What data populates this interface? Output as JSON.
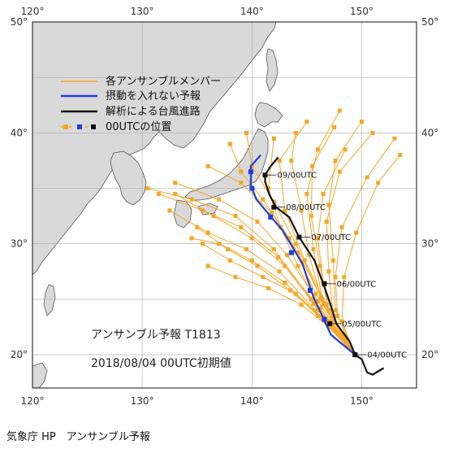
{
  "chart_data": {
    "type": "map",
    "title": "",
    "xlim": [
      120,
      155
    ],
    "ylim": [
      17,
      50
    ],
    "x_ticks": [
      120,
      130,
      140,
      150
    ],
    "y_ticks": [
      20,
      30,
      40,
      50
    ],
    "x_tick_labels": [
      "120°",
      "130°",
      "140°",
      "150°"
    ],
    "y_tick_labels": [
      "20°",
      "30°",
      "40°",
      "50°"
    ],
    "grid": true,
    "legend_position": "top-left",
    "legend": [
      {
        "label": "各アンサンブルメンバー",
        "color": "#f5a623",
        "kind": "line"
      },
      {
        "label": "摂動を入れない予報",
        "color": "#1f3de0",
        "kind": "line"
      },
      {
        "label": "解析による台風進路",
        "color": "#111111",
        "kind": "line"
      },
      {
        "label": "00UTCの位置",
        "color": "#f5a623",
        "kind": "markers",
        "marker_colors": [
          "#f5a623",
          "#1f3de0",
          "#111111"
        ]
      }
    ],
    "colors": {
      "land": "#d9d9d9",
      "sea": "#ffffff",
      "grid": "#aaaaaa",
      "coast": "#555555"
    },
    "analysis_track": [
      [
        152,
        18.8
      ],
      [
        151,
        18.2
      ],
      [
        150.5,
        18.4
      ],
      [
        150,
        19.6
      ],
      [
        149.4,
        20.0
      ],
      [
        148.9,
        21.2
      ],
      [
        147.7,
        22.8
      ],
      [
        147.1,
        24.7
      ],
      [
        146.5,
        26.4
      ],
      [
        145.7,
        28.5
      ],
      [
        144.3,
        30.6
      ],
      [
        143.4,
        32.4
      ],
      [
        142.2,
        33.3
      ],
      [
        141.6,
        34.4
      ],
      [
        141.2,
        35.6
      ],
      [
        141.2,
        36.2
      ],
      [
        141.7,
        37.0
      ],
      [
        142.4,
        37.8
      ]
    ],
    "analysis_points": [
      [
        149.4,
        20.0
      ],
      [
        147.1,
        22.8
      ],
      [
        146.6,
        26.4
      ],
      [
        144.3,
        30.6
      ],
      [
        142.0,
        33.3
      ],
      [
        141.2,
        36.2
      ]
    ],
    "analysis_labels": [
      {
        "text": "04/00UTC",
        "lon": 149.4,
        "lat": 20.0
      },
      {
        "text": "05/00UTC",
        "lon": 147.1,
        "lat": 22.8
      },
      {
        "text": "06/00UTC",
        "lon": 146.6,
        "lat": 26.4
      },
      {
        "text": "07/00UTC",
        "lon": 144.3,
        "lat": 30.6
      },
      {
        "text": "08/00UTC",
        "lon": 142.0,
        "lat": 33.3
      },
      {
        "text": "09/00UTC",
        "lon": 141.2,
        "lat": 36.2
      }
    ],
    "control_forecast": [
      [
        149.4,
        20.0
      ],
      [
        147.2,
        21.8
      ],
      [
        145.6,
        25.2
      ],
      [
        144.6,
        28.2
      ],
      [
        142.8,
        31.2
      ],
      [
        140.4,
        34.0
      ],
      [
        139.9,
        35.3
      ],
      [
        139.9,
        37.0
      ],
      [
        140.8,
        38.0
      ]
    ],
    "control_points": [
      [
        149.4,
        20.0
      ],
      [
        146.6,
        23.2
      ],
      [
        145.3,
        25.8
      ],
      [
        143.6,
        29.2
      ],
      [
        141.7,
        32.4
      ],
      [
        140.0,
        35.0
      ],
      [
        139.9,
        36.5
      ]
    ],
    "ensemble_members": [
      [
        [
          149.4,
          20.0
        ],
        [
          146.5,
          24.5
        ],
        [
          145.2,
          29.0
        ],
        [
          144.5,
          33.0
        ],
        [
          143.6,
          37.5
        ],
        [
          144.0,
          40.0
        ]
      ],
      [
        [
          149.4,
          20.0
        ],
        [
          147.0,
          24.0
        ],
        [
          146.2,
          28.0
        ],
        [
          145.4,
          32.5
        ],
        [
          145.5,
          37.0
        ],
        [
          147.5,
          40.5
        ]
      ],
      [
        [
          149.4,
          20.0
        ],
        [
          147.4,
          23.5
        ],
        [
          147.0,
          27.5
        ],
        [
          146.8,
          32.0
        ],
        [
          148.0,
          36.5
        ],
        [
          151.0,
          40.0
        ]
      ],
      [
        [
          149.4,
          20.0
        ],
        [
          147.8,
          23.5
        ],
        [
          147.6,
          27.0
        ],
        [
          148.2,
          31.5
        ],
        [
          150.5,
          36.0
        ],
        [
          153.0,
          39.5
        ]
      ],
      [
        [
          149.4,
          20.0
        ],
        [
          148.2,
          23.0
        ],
        [
          148.4,
          27.0
        ],
        [
          149.5,
          31.0
        ],
        [
          151.5,
          35.5
        ],
        [
          153.5,
          38.0
        ]
      ],
      [
        [
          149.4,
          20.0
        ],
        [
          146.8,
          24.5
        ],
        [
          144.8,
          28.5
        ],
        [
          143.0,
          33.0
        ],
        [
          142.5,
          37.5
        ],
        [
          145.0,
          41.0
        ]
      ],
      [
        [
          149.4,
          20.0
        ],
        [
          146.2,
          24.0
        ],
        [
          144.2,
          28.0
        ],
        [
          142.6,
          31.5
        ],
        [
          141.5,
          35.0
        ],
        [
          142.0,
          39.5
        ]
      ],
      [
        [
          149.4,
          20.0
        ],
        [
          147.2,
          23.0
        ],
        [
          146.5,
          26.5
        ],
        [
          146.0,
          30.5
        ],
        [
          146.5,
          34.5
        ],
        [
          148.5,
          38.5
        ]
      ],
      [
        [
          149.4,
          20.0
        ],
        [
          146.4,
          25.0
        ],
        [
          145.6,
          29.5
        ],
        [
          145.0,
          34.5
        ],
        [
          146.0,
          38.5
        ],
        [
          148.0,
          42.0
        ]
      ],
      [
        [
          149.4,
          20.0
        ],
        [
          147.6,
          24.0
        ],
        [
          147.4,
          28.5
        ],
        [
          147.0,
          33.5
        ],
        [
          147.6,
          37.5
        ],
        [
          150.0,
          41.0
        ]
      ],
      [
        [
          149.4,
          20.0
        ],
        [
          146.0,
          23.5
        ],
        [
          143.0,
          26.5
        ],
        [
          140.0,
          28.5
        ],
        [
          137.0,
          30.0
        ],
        [
          134.5,
          30.5
        ]
      ],
      [
        [
          149.4,
          20.0
        ],
        [
          146.5,
          23.2
        ],
        [
          143.5,
          25.8
        ],
        [
          140.5,
          28.0
        ],
        [
          137.8,
          29.5
        ],
        [
          135.0,
          31.5
        ]
      ],
      [
        [
          149.4,
          20.0
        ],
        [
          146.8,
          23.0
        ],
        [
          144.0,
          25.5
        ],
        [
          141.0,
          27.0
        ],
        [
          138.0,
          28.5
        ],
        [
          135.5,
          30.0
        ]
      ],
      [
        [
          149.4,
          20.0
        ],
        [
          145.8,
          24.0
        ],
        [
          142.5,
          27.5
        ],
        [
          139.5,
          29.5
        ],
        [
          136.0,
          31.0
        ],
        [
          132.5,
          33.0
        ]
      ],
      [
        [
          149.4,
          20.0
        ],
        [
          146.2,
          24.2
        ],
        [
          143.0,
          28.0
        ],
        [
          140.0,
          30.5
        ],
        [
          136.5,
          32.5
        ],
        [
          133.0,
          34.5
        ]
      ],
      [
        [
          149.4,
          20.0
        ],
        [
          145.6,
          24.6
        ],
        [
          142.4,
          28.8
        ],
        [
          139.0,
          31.5
        ],
        [
          135.5,
          33.0
        ],
        [
          131.5,
          34.5
        ]
      ],
      [
        [
          149.4,
          20.0
        ],
        [
          146.0,
          24.8
        ],
        [
          143.2,
          29.0
        ],
        [
          140.5,
          32.0
        ],
        [
          137.0,
          34.0
        ],
        [
          133.0,
          35.5
        ]
      ],
      [
        [
          149.4,
          20.0
        ],
        [
          145.4,
          25.0
        ],
        [
          142.0,
          29.5
        ],
        [
          138.5,
          32.5
        ],
        [
          134.5,
          34.0
        ],
        [
          130.5,
          35.0
        ]
      ],
      [
        [
          149.4,
          20.0
        ],
        [
          146.6,
          24.6
        ],
        [
          144.2,
          29.2
        ],
        [
          141.8,
          32.8
        ],
        [
          139.0,
          35.5
        ],
        [
          136.0,
          37.0
        ]
      ],
      [
        [
          149.4,
          20.0
        ],
        [
          146.3,
          25.2
        ],
        [
          144.0,
          30.0
        ],
        [
          142.0,
          33.8
        ],
        [
          140.0,
          37.0
        ],
        [
          139.5,
          40.0
        ]
      ],
      [
        [
          149.4,
          20.0
        ],
        [
          147.0,
          22.5
        ],
        [
          144.5,
          24.5
        ],
        [
          141.5,
          26.0
        ],
        [
          138.5,
          27.0
        ],
        [
          136.0,
          28.0
        ]
      ],
      [
        [
          149.4,
          20.0
        ],
        [
          145.8,
          25.5
        ],
        [
          143.4,
          30.5
        ],
        [
          141.0,
          34.0
        ],
        [
          139.0,
          36.5
        ],
        [
          138.0,
          39.0
        ]
      ]
    ]
  },
  "annotation": {
    "ensemble_name": "アンサンブル予報 T1813",
    "init_time": "2018/08/04 00UTC初期値"
  },
  "caption": "気象庁 HP　アンサンブル予報"
}
